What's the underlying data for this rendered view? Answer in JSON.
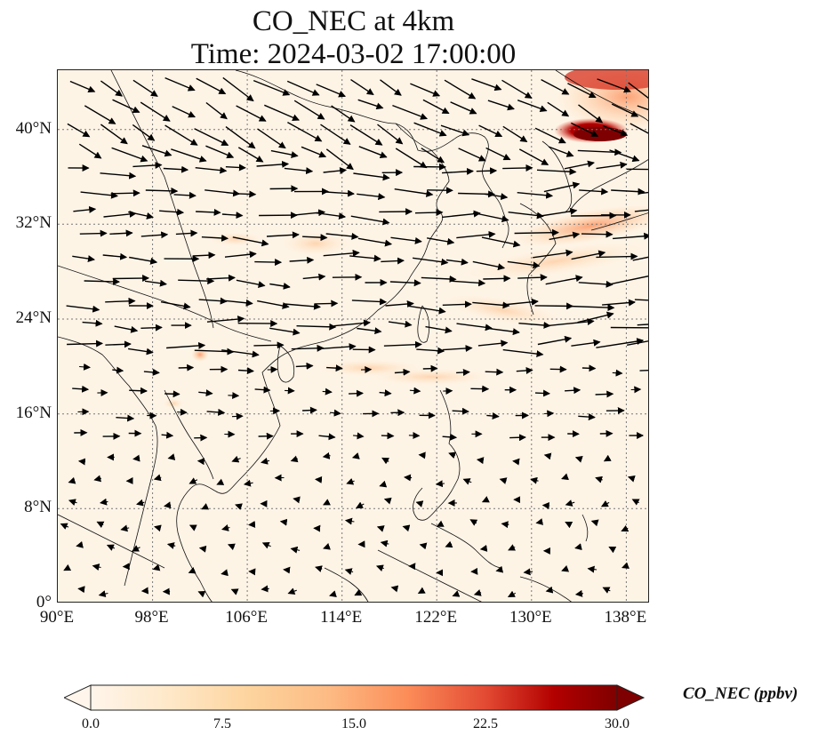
{
  "title": {
    "line1": "CO_NEC at 4km",
    "line2": "Time: 2024-03-02 17:00:00"
  },
  "map": {
    "lon_range": [
      90,
      140
    ],
    "lat_range": [
      0,
      45
    ],
    "lat_ticks": [
      {
        "value": 40,
        "label": "40°N"
      },
      {
        "value": 32,
        "label": "32°N"
      },
      {
        "value": 24,
        "label": "24°N"
      },
      {
        "value": 16,
        "label": "16°N"
      },
      {
        "value": 8,
        "label": "8°N"
      },
      {
        "value": 0,
        "label": "0°"
      }
    ],
    "lon_ticks": [
      {
        "value": 90,
        "label": "90°E"
      },
      {
        "value": 98,
        "label": "98°E"
      },
      {
        "value": 106,
        "label": "106°E"
      },
      {
        "value": 114,
        "label": "114°E"
      },
      {
        "value": 122,
        "label": "122°E"
      },
      {
        "value": 130,
        "label": "130°E"
      },
      {
        "value": 138,
        "label": "138°E"
      }
    ],
    "gridlines": "dotted",
    "wind_vectors": "shown",
    "background_color": "#fef4e6"
  },
  "colorbar": {
    "label": "CO_NEC (ppbv)",
    "ticks": [
      "0.0",
      "7.5",
      "15.0",
      "22.5",
      "30.0"
    ],
    "range": [
      0,
      30
    ],
    "colormap": [
      "#fff5eb",
      "#fee6ce",
      "#fdd0a2",
      "#fdae6b",
      "#fd8d3c",
      "#f16913",
      "#d94801",
      "#a63603",
      "#7f2704"
    ],
    "extend": "both"
  }
}
